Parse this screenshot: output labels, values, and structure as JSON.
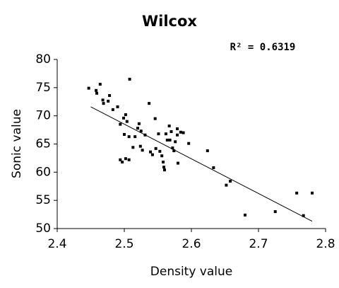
{
  "chart_data": {
    "type": "scatter",
    "title": "Wilcox",
    "annotation": "R² = 0.6319",
    "x_label": "Density value",
    "y_label": "Sonic value",
    "series": [
      {
        "name": "Wilcox",
        "color": "#000000",
        "x": [
          2.447,
          2.458,
          2.459,
          2.464,
          2.468,
          2.469,
          2.476,
          2.478,
          2.483,
          2.49,
          2.508,
          2.494,
          2.499,
          2.502,
          2.504,
          2.5,
          2.507,
          2.494,
          2.497,
          2.502,
          2.507,
          2.513,
          2.516,
          2.52,
          2.522,
          2.525,
          2.531,
          2.527,
          2.524,
          2.537,
          2.539,
          2.542,
          2.547,
          2.546,
          2.551,
          2.553,
          2.556,
          2.558,
          2.559,
          2.56,
          2.562,
          2.564,
          2.567,
          2.568,
          2.57,
          2.572,
          2.574,
          2.576,
          2.579,
          2.579,
          2.58,
          2.584,
          2.588,
          2.596,
          2.624,
          2.633,
          2.652,
          2.658,
          2.68,
          2.725,
          2.757,
          2.78,
          2.767
        ],
        "values": [
          74.9,
          74.5,
          74.0,
          75.6,
          72.8,
          72.2,
          72.6,
          73.6,
          71.1,
          71.6,
          76.5,
          68.5,
          69.6,
          70.2,
          69.0,
          66.7,
          66.3,
          62.2,
          61.8,
          62.4,
          62.2,
          64.4,
          66.3,
          67.8,
          68.6,
          67.3,
          66.6,
          63.9,
          64.6,
          72.2,
          63.6,
          63.1,
          64.2,
          69.5,
          66.8,
          63.7,
          62.9,
          61.8,
          60.9,
          60.4,
          66.8,
          65.7,
          68.2,
          65.7,
          67.2,
          64.3,
          63.8,
          65.4,
          66.6,
          67.7,
          61.6,
          67.1,
          67.0,
          65.1,
          63.8,
          60.8,
          57.7,
          58.4,
          52.4,
          53.0,
          56.3,
          56.3,
          52.3
        ]
      }
    ],
    "trendline": {
      "x": [
        2.45,
        2.78
      ],
      "y": [
        71.6,
        51.3
      ],
      "color": "#000000"
    },
    "xlim": [
      2.4,
      2.8
    ],
    "xticks": [
      2.4,
      2.5,
      2.6,
      2.7,
      2.8
    ],
    "ylim": [
      50,
      80
    ],
    "yticks": [
      50,
      55,
      60,
      65,
      70,
      75,
      80
    ],
    "grid": false
  }
}
